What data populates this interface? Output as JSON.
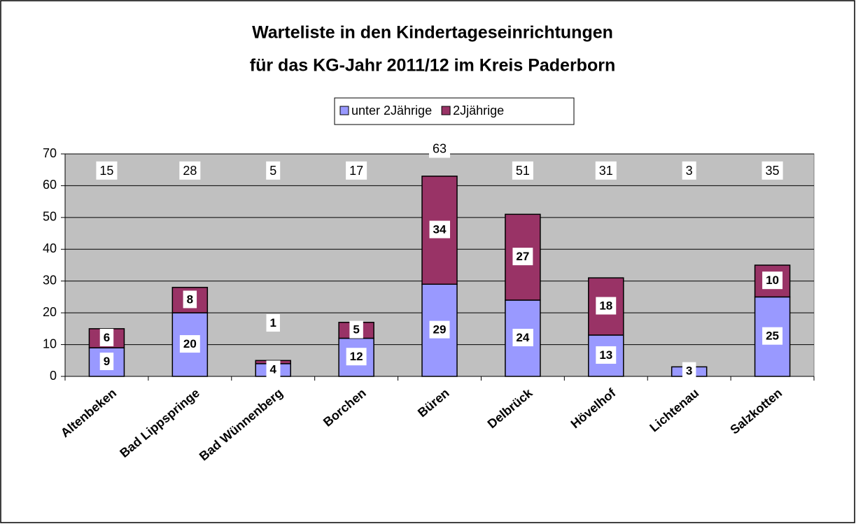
{
  "chart_data": {
    "type": "stacked_bar",
    "title": [
      "Warteliste in den Kindertageseinrichtungen",
      "für das KG-Jahr 2011/12 im Kreis Paderborn"
    ],
    "categories": [
      "Altenbeken",
      "Bad Lippspringe",
      "Bad Wünnenberg",
      "Borchen",
      "Büren",
      "Delbrück",
      "Hövelhof",
      "Lichtenau",
      "Salzkotten"
    ],
    "series": [
      {
        "name": "unter 2Jährige",
        "color": "#9999ff",
        "values": [
          9,
          20,
          4,
          12,
          29,
          24,
          13,
          3,
          25
        ]
      },
      {
        "name": "2Jjährige",
        "color": "#993366",
        "values": [
          6,
          8,
          1,
          5,
          34,
          27,
          18,
          null,
          10
        ]
      }
    ],
    "totals": [
      15,
      28,
      5,
      17,
      63,
      51,
      31,
      3,
      35
    ],
    "ylim": [
      0,
      70
    ],
    "yticks": [
      0,
      10,
      20,
      30,
      40,
      50,
      60,
      70
    ],
    "grid": true,
    "legend": "top"
  }
}
